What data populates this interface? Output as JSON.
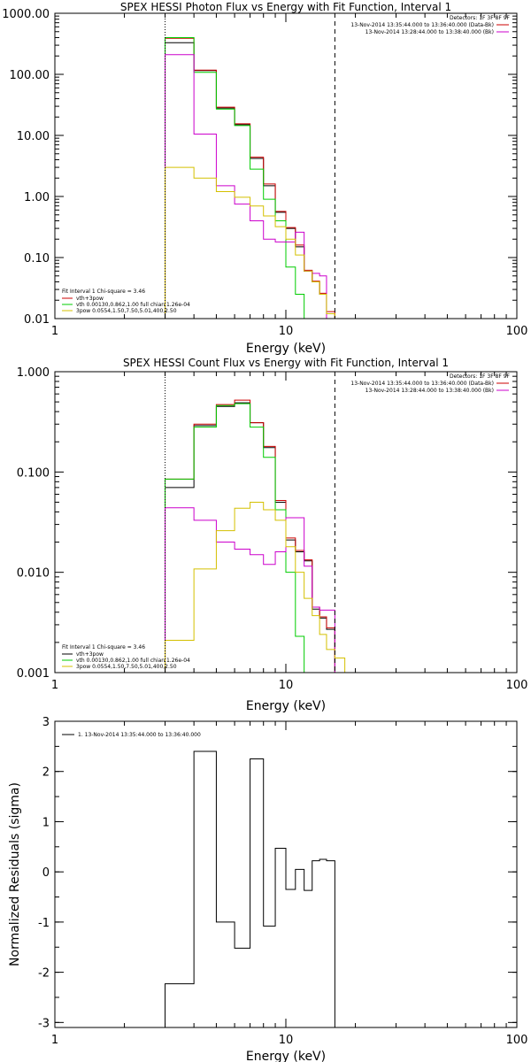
{
  "chart_data": [
    {
      "type": "line",
      "title": "SPEX HESSI Photon Flux vs Energy with Fit Function, Interval 1",
      "xlabel": "Energy (keV)",
      "ylabel": "",
      "xscale": "log",
      "yscale": "log",
      "xlim": [
        1,
        100
      ],
      "ylim": [
        0.01,
        1000
      ],
      "xticks": [
        {
          "v": 1,
          "label": "1"
        },
        {
          "v": 10,
          "label": "10"
        },
        {
          "v": 100,
          "label": "100"
        }
      ],
      "yticks": [
        {
          "v": 0.01,
          "label": "0.01"
        },
        {
          "v": 0.1,
          "label": "0.10"
        },
        {
          "v": 1,
          "label": "1.00"
        },
        {
          "v": 10,
          "label": "10.00"
        },
        {
          "v": 100,
          "label": "100.00"
        },
        {
          "v": 1000,
          "label": "1000.00"
        }
      ],
      "vlines": [
        {
          "x": 3,
          "style": "dotted"
        },
        {
          "x": 16.3,
          "style": "dashed"
        }
      ],
      "edges": [
        3,
        4,
        5,
        6,
        7,
        8,
        9,
        10,
        11,
        12,
        13,
        14,
        15,
        16.3,
        18
      ],
      "series": [
        {
          "color": "#000000",
          "values": [
            330,
            115,
            28,
            15,
            4.2,
            1.5,
            0.55,
            0.3,
            0.15,
            0.06,
            0.04,
            0.025,
            0.012,
            null
          ]
        },
        {
          "color": "#cc0000",
          "values": [
            390,
            117,
            29,
            15.5,
            4.4,
            1.6,
            0.57,
            0.31,
            0.16,
            0.062,
            0.041,
            0.026,
            0.013,
            null
          ]
        },
        {
          "color": "#00cc00",
          "values": [
            400,
            108,
            27,
            14.5,
            2.8,
            0.9,
            0.4,
            0.07,
            0.025,
            null,
            null,
            null,
            null,
            null
          ]
        },
        {
          "color": "#cc00cc",
          "values": [
            210,
            10.5,
            1.5,
            0.75,
            0.4,
            0.2,
            0.18,
            0.18,
            0.26,
            0.06,
            0.055,
            0.05,
            null,
            null
          ]
        },
        {
          "color": "#d4c000",
          "values": [
            3,
            2,
            1.2,
            0.97,
            0.7,
            0.48,
            0.32,
            0.2,
            0.11,
            0.06,
            0.04,
            0.025,
            0.012,
            null
          ]
        }
      ],
      "legend_title": "Detectors: 1F 3F 8F 9F",
      "legend_right": [
        {
          "text": "13-Nov-2014 13:35:44.000 to 13:36:40.000 (Data-Bk)",
          "color": "#cc0000"
        },
        {
          "text": "13-Nov-2014 13:28:44.000 to 13:38:40.000 (Bk)",
          "color": "#cc00cc"
        }
      ],
      "legend_left_title": "Fit Interval 1   Chi-square = 3.46",
      "legend_left": [
        {
          "text": "vth+3pow",
          "color": "#cc0000"
        },
        {
          "text": "vth 0.00130,0.862,1.00  full chian 1.26e-04",
          "color": "#00cc00"
        },
        {
          "text": "3pow 0.0554,1.50,7.50,5.01,400,2.50",
          "color": "#d4c000"
        }
      ]
    },
    {
      "type": "line",
      "title": "SPEX HESSI Count Flux vs Energy with Fit Function, Interval 1",
      "xlabel": "Energy (keV)",
      "ylabel": "",
      "xscale": "log",
      "yscale": "log",
      "xlim": [
        1,
        100
      ],
      "ylim": [
        0.001,
        1
      ],
      "xticks": [
        {
          "v": 1,
          "label": "1"
        },
        {
          "v": 10,
          "label": "10"
        },
        {
          "v": 100,
          "label": "100"
        }
      ],
      "yticks": [
        {
          "v": 0.001,
          "label": "0.001"
        },
        {
          "v": 0.01,
          "label": "0.010"
        },
        {
          "v": 0.1,
          "label": "0.100"
        },
        {
          "v": 1,
          "label": "1.000"
        }
      ],
      "vlines": [
        {
          "x": 3,
          "style": "dotted"
        },
        {
          "x": 16.3,
          "style": "dashed"
        }
      ],
      "edges": [
        3,
        4,
        5,
        6,
        7,
        8,
        9,
        10,
        11,
        12,
        13,
        14,
        15,
        16.3,
        18,
        20
      ],
      "series": [
        {
          "color": "#000000",
          "values": [
            0.07,
            0.29,
            0.45,
            0.49,
            0.31,
            0.175,
            0.05,
            0.021,
            0.016,
            0.013,
            0.0043,
            0.0035,
            0.0027,
            null,
            null
          ]
        },
        {
          "color": "#cc0000",
          "values": [
            0.085,
            0.3,
            0.47,
            0.52,
            0.31,
            0.18,
            0.052,
            0.022,
            0.0165,
            0.0133,
            0.0045,
            0.0036,
            0.0028,
            null,
            null
          ]
        },
        {
          "color": "#00cc00",
          "values": [
            0.085,
            0.28,
            0.46,
            0.48,
            0.28,
            0.14,
            0.042,
            0.01,
            0.0023,
            null,
            null,
            null,
            null,
            null,
            null
          ]
        },
        {
          "color": "#cc00cc",
          "values": [
            0.044,
            0.033,
            0.02,
            0.017,
            0.015,
            0.012,
            0.016,
            0.035,
            0.035,
            0.0115,
            0.0045,
            0.0042,
            0.0042,
            null,
            null
          ]
        },
        {
          "color": "#d4c000",
          "values": [
            0.0021,
            0.0108,
            0.026,
            0.0435,
            0.05,
            0.042,
            0.033,
            0.018,
            0.01,
            0.0055,
            0.0037,
            0.0024,
            0.0017,
            0.0014,
            0.001
          ]
        }
      ],
      "legend_title": "Detectors: 1F 3F 8F 9F",
      "legend_right": [
        {
          "text": "13-Nov-2014 13:35:44.000 to 13:36:40.000 (Data-Bk)",
          "color": "#cc0000"
        },
        {
          "text": "13-Nov-2014 13:28:44.000 to 13:38:40.000 (Bk)",
          "color": "#cc00cc"
        }
      ],
      "legend_left_title": "Fit Interval 1   Chi-square = 3.46",
      "legend_left": [
        {
          "text": "vth+3pow",
          "color": "#000000"
        },
        {
          "text": "vth 0.00130,0.862,1.00  full chian 1.26e-04",
          "color": "#00cc00"
        },
        {
          "text": "3pow 0.0554,1.50,7.50,5.01,400,2.50",
          "color": "#d4c000"
        }
      ]
    },
    {
      "type": "line",
      "title": "",
      "xlabel": "Energy (keV)",
      "ylabel": "Normalized Residuals (sigma)",
      "xscale": "log",
      "yscale": "linear",
      "xlim": [
        1,
        100
      ],
      "ylim": [
        -3.1,
        3
      ],
      "xticks": [
        {
          "v": 1,
          "label": "1"
        },
        {
          "v": 10,
          "label": "10"
        },
        {
          "v": 100,
          "label": "100"
        }
      ],
      "yticks": [
        {
          "v": -3,
          "label": "-3"
        },
        {
          "v": -2,
          "label": "-2"
        },
        {
          "v": -1,
          "label": "-1"
        },
        {
          "v": 0,
          "label": "0"
        },
        {
          "v": 1,
          "label": "1"
        },
        {
          "v": 2,
          "label": "2"
        },
        {
          "v": 3,
          "label": "3"
        }
      ],
      "vlines": [],
      "edges": [
        3,
        4,
        5,
        6,
        7,
        8,
        9,
        10,
        11,
        12,
        13,
        14,
        15,
        16.3
      ],
      "drop_to_bottom": true,
      "series": [
        {
          "color": "#000000",
          "values": [
            -2.23,
            2.4,
            -1.0,
            -1.52,
            2.25,
            -1.08,
            0.47,
            -0.35,
            0.05,
            -0.37,
            0.22,
            0.25,
            0.22
          ]
        }
      ],
      "legend_title": "",
      "legend_right": [],
      "legend_left_title": "",
      "legend_left": [],
      "legend_top": [
        {
          "text": "1. 13-Nov-2014 13:35:44.000 to 13:36:40.000",
          "color": "#000000"
        }
      ]
    }
  ]
}
